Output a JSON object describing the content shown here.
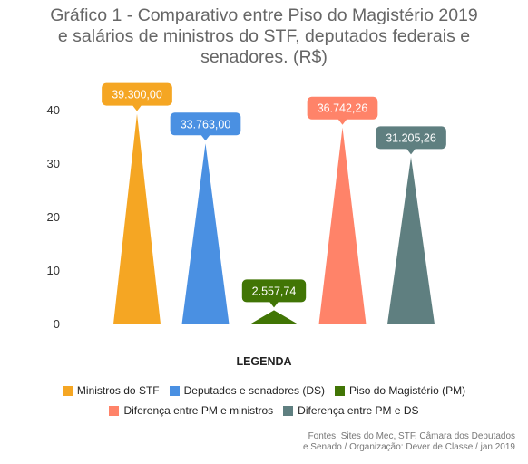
{
  "chart_data": {
    "type": "bar",
    "title_lines": [
      "Gráfico 1 - Comparativo entre Piso do Magistério 2019",
      "e salários de ministros do STF, deputados federais e",
      "senadores. (R$)"
    ],
    "xlabel": "",
    "ylabel": "",
    "ylim": [
      0,
      45
    ],
    "yticks": [
      "0",
      "10",
      "20",
      "30",
      "40"
    ],
    "grid": false,
    "legend_title": "LEGENDA",
    "legend_position": "bottom",
    "categories": [
      "Ministros do STF",
      "Deputados e senadores (DS)",
      "Piso do Magistério (PM)",
      "Diferença entre PM e ministros",
      "Diferença entre PM e DS"
    ],
    "values": [
      39.3,
      33.763,
      2.55774,
      36.74226,
      31.20526
    ],
    "data_labels": [
      "39.300,00",
      "33.763,00",
      "2.557,74",
      "36.742,26",
      "31.205,26"
    ],
    "colors": [
      "#F5A623",
      "#4A90E2",
      "#417505",
      "#FF8369",
      "#5F7F80"
    ],
    "source_lines": [
      "Fontes: Sites do Mec, STF,  Câmara dos Deputados",
      "e Senado / Organização: Dever de Classe / jan 2019"
    ]
  }
}
